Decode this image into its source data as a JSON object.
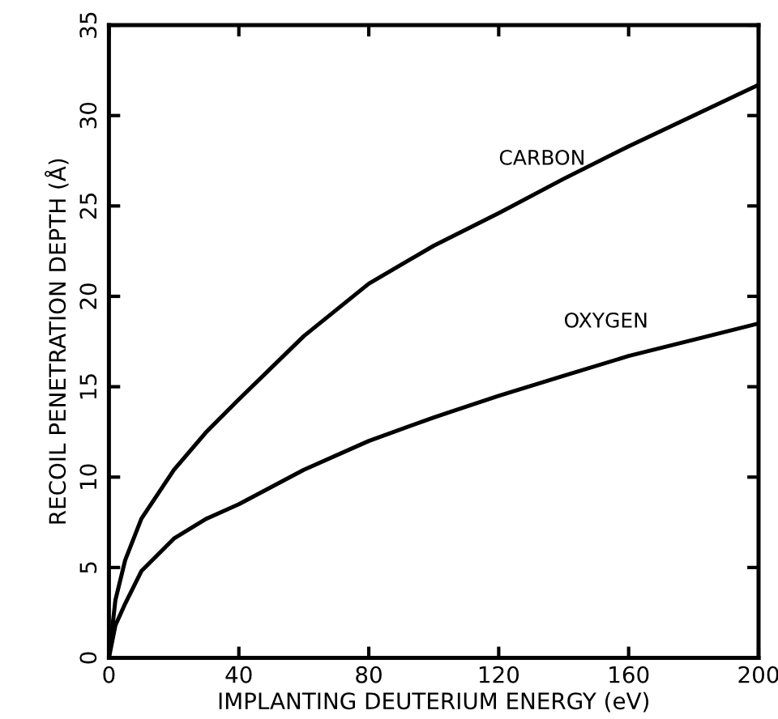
{
  "chart_data": {
    "type": "line",
    "xlabel": "IMPLANTING DEUTERIUM ENERGY (eV)",
    "ylabel": "RECOIL PENETRATION DEPTH (Å)",
    "x": [
      0,
      2,
      5,
      10,
      20,
      30,
      40,
      60,
      80,
      100,
      120,
      140,
      160,
      180,
      200
    ],
    "series": [
      {
        "name": "CARBON",
        "color": "#000000",
        "values": [
          0,
          3.2,
          5.4,
          7.7,
          10.4,
          12.5,
          14.3,
          17.8,
          20.7,
          22.8,
          24.6,
          26.5,
          28.3,
          30.0,
          31.7
        ]
      },
      {
        "name": "OXYGEN",
        "color": "#000000",
        "values": [
          0,
          1.8,
          3.0,
          4.8,
          6.6,
          7.7,
          8.5,
          10.4,
          12.0,
          13.3,
          14.5,
          15.6,
          16.7,
          17.6,
          18.5
        ]
      }
    ],
    "xlim": [
      0,
      200
    ],
    "ylim": [
      0,
      35
    ],
    "xticks": [
      0,
      40,
      80,
      120,
      160,
      200
    ],
    "yticks": [
      0,
      5,
      10,
      15,
      20,
      25,
      30,
      35
    ],
    "grid": false,
    "legend": false,
    "marker": "none",
    "line_style": "solid"
  }
}
